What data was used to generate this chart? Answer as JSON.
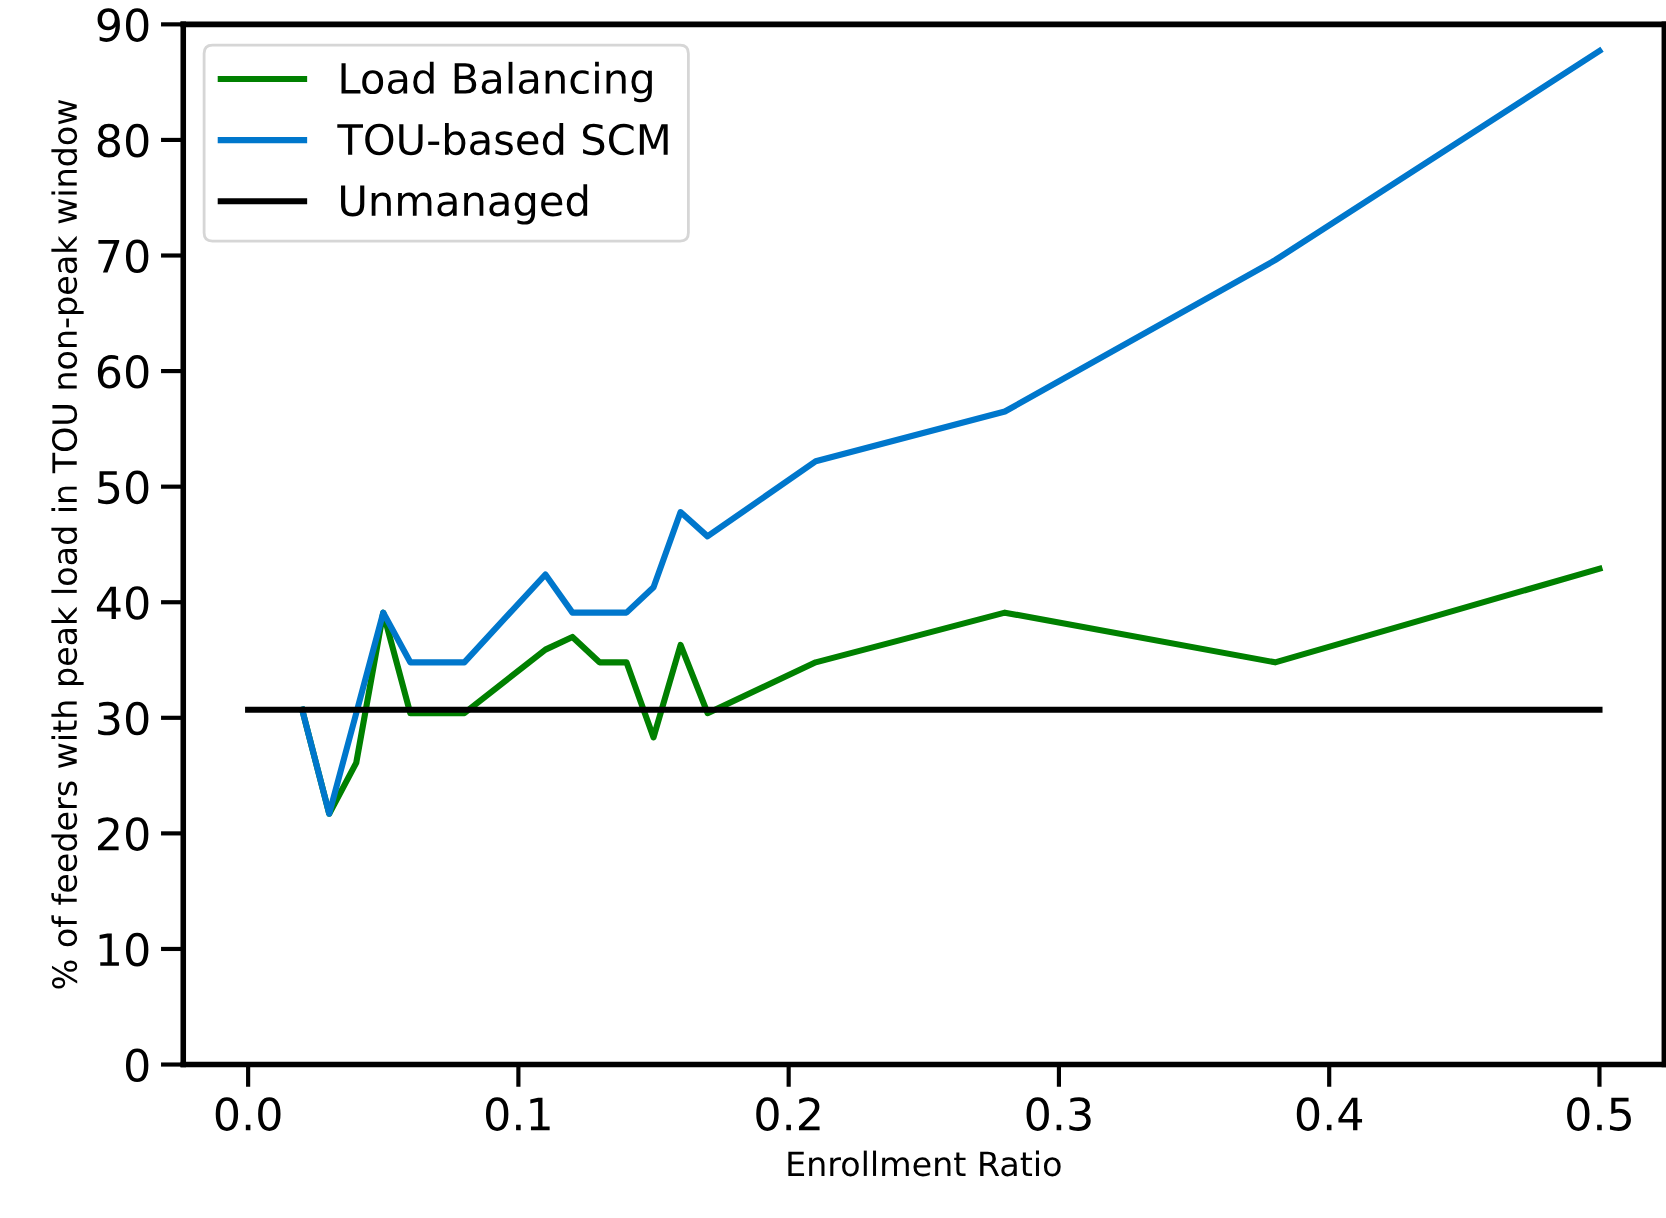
{
  "chart_data": {
    "type": "line",
    "xlabel": "Enrollment Ratio",
    "ylabel": "% of feeders with peak load in TOU non-peak window",
    "xlim": [
      -0.024,
      0.524
    ],
    "xticks": [
      {
        "value": 0,
        "label": "0.0"
      },
      0.1,
      0.2,
      0.3,
      0.4,
      0.5
    ],
    "ylim": [
      0,
      90
    ],
    "yticks": [
      0,
      10,
      20,
      30,
      40,
      50,
      60,
      70,
      80,
      90
    ],
    "grid": false,
    "legend": "top left",
    "marker": "none",
    "line_style": "solid",
    "series": [
      {
        "name": "Load Balancing",
        "color": "#008000",
        "x": [
          0.02,
          0.03,
          0.04,
          0.05,
          0.06,
          0.07,
          0.08,
          0.11,
          0.12,
          0.13,
          0.14,
          0.15,
          0.16,
          0.17,
          0.21,
          0.28,
          0.38,
          0.5
        ],
        "values": [
          30.7,
          21.7,
          26.1,
          39.1,
          30.4,
          30.4,
          30.4,
          35.9,
          37.0,
          34.8,
          34.8,
          28.3,
          36.3,
          30.4,
          34.8,
          39.1,
          34.8,
          42.9
        ]
      },
      {
        "name": "TOU-based SCM",
        "color": "#0077cc",
        "x": [
          0.02,
          0.03,
          0.04,
          0.05,
          0.06,
          0.07,
          0.08,
          0.11,
          0.12,
          0.13,
          0.14,
          0.15,
          0.16,
          0.17,
          0.21,
          0.28,
          0.38,
          0.5
        ],
        "values": [
          30.7,
          21.7,
          30.4,
          39.1,
          34.8,
          34.8,
          34.8,
          42.4,
          39.1,
          39.1,
          39.1,
          41.3,
          47.8,
          45.7,
          52.2,
          56.5,
          69.6,
          87.7
        ]
      },
      {
        "name": "Unmanaged",
        "color": "#000000",
        "x": [
          0,
          0.5
        ],
        "values": [
          30.7,
          30.7
        ]
      }
    ]
  }
}
